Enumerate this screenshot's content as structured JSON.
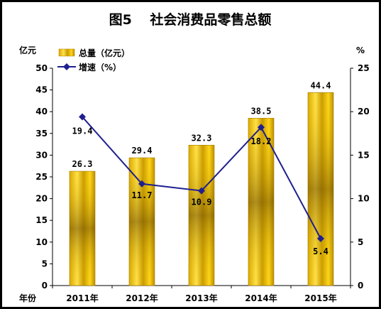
{
  "chart_data": {
    "type": "bar",
    "title": "图5　 社会消费品零售总额",
    "x_label": "年份",
    "categories": [
      "2011年",
      "2012年",
      "2013年",
      "2014年",
      "2015年"
    ],
    "left_axis": {
      "unit": "亿元",
      "range": [
        0,
        50
      ],
      "ticks": [
        "0",
        "5",
        "10",
        "15",
        "20",
        "25",
        "30",
        "35",
        "40",
        "45",
        "50"
      ]
    },
    "right_axis": {
      "unit": "%",
      "range": [
        0,
        25
      ],
      "ticks": [
        "0",
        "5",
        "10",
        "15",
        "20",
        "25"
      ]
    },
    "series": [
      {
        "name": "总量（亿元）",
        "type": "bar",
        "axis": "left",
        "color": "#f2c200",
        "values": [
          26.3,
          29.4,
          32.3,
          38.5,
          44.4
        ],
        "labels": [
          "26.3",
          "29.4",
          "32.3",
          "38.5",
          "44.4"
        ]
      },
      {
        "name": "增速（%）",
        "type": "line",
        "axis": "right",
        "color": "#1f1f8f",
        "values": [
          19.4,
          11.7,
          10.9,
          18.2,
          5.4
        ],
        "labels": [
          "19.4",
          "11.7",
          "10.9",
          "18.2",
          "5.4"
        ]
      }
    ],
    "legend_position": "top-left"
  }
}
